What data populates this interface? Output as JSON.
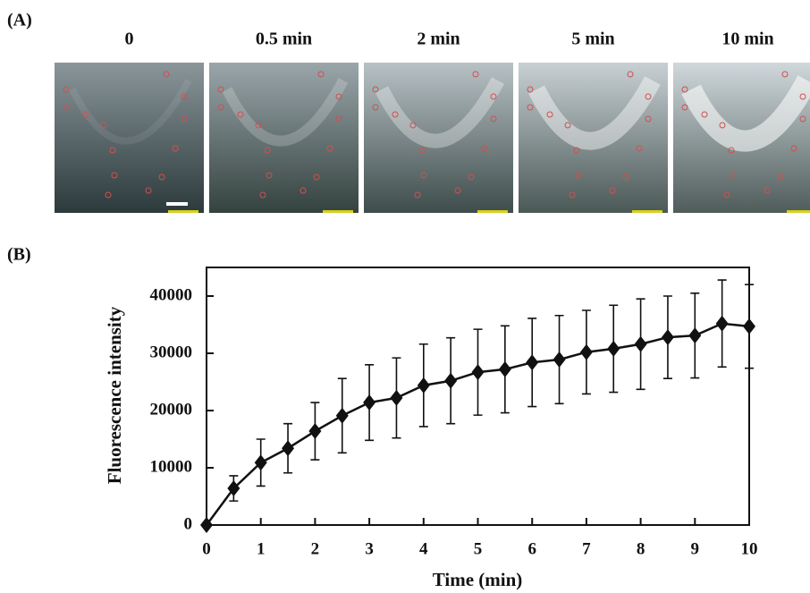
{
  "panel_a": {
    "label": "(A)",
    "time_labels": [
      "0",
      "0.5 min",
      "2 min",
      "5 min",
      "10 min"
    ]
  },
  "panel_b": {
    "label": "(B)"
  },
  "chart_data": {
    "type": "line",
    "x_label": "Time (min)",
    "y_label": "Fluorescence intensity",
    "x": [
      0,
      0.5,
      1,
      1.5,
      2,
      2.5,
      3,
      3.5,
      4,
      4.5,
      5,
      5.5,
      6,
      6.5,
      7,
      7.5,
      8,
      8.5,
      9,
      9.5,
      10
    ],
    "values": [
      0,
      6400,
      10900,
      13400,
      16400,
      19100,
      21400,
      22200,
      24400,
      25200,
      26700,
      27200,
      28400,
      28900,
      30200,
      30800,
      31600,
      32800,
      33100,
      35200,
      34700
    ],
    "errors": [
      0,
      2200,
      4100,
      4300,
      5000,
      6500,
      6600,
      7000,
      7200,
      7500,
      7500,
      7600,
      7700,
      7700,
      7300,
      7600,
      7900,
      7200,
      7400,
      7600,
      7300
    ],
    "color": "#111111",
    "xlim": [
      0,
      10
    ],
    "xticks": [
      0,
      1,
      2,
      3,
      4,
      5,
      6,
      7,
      8,
      9,
      10
    ],
    "ylim": [
      0,
      45000
    ],
    "yticks": [
      0,
      10000,
      20000,
      30000,
      40000
    ]
  }
}
